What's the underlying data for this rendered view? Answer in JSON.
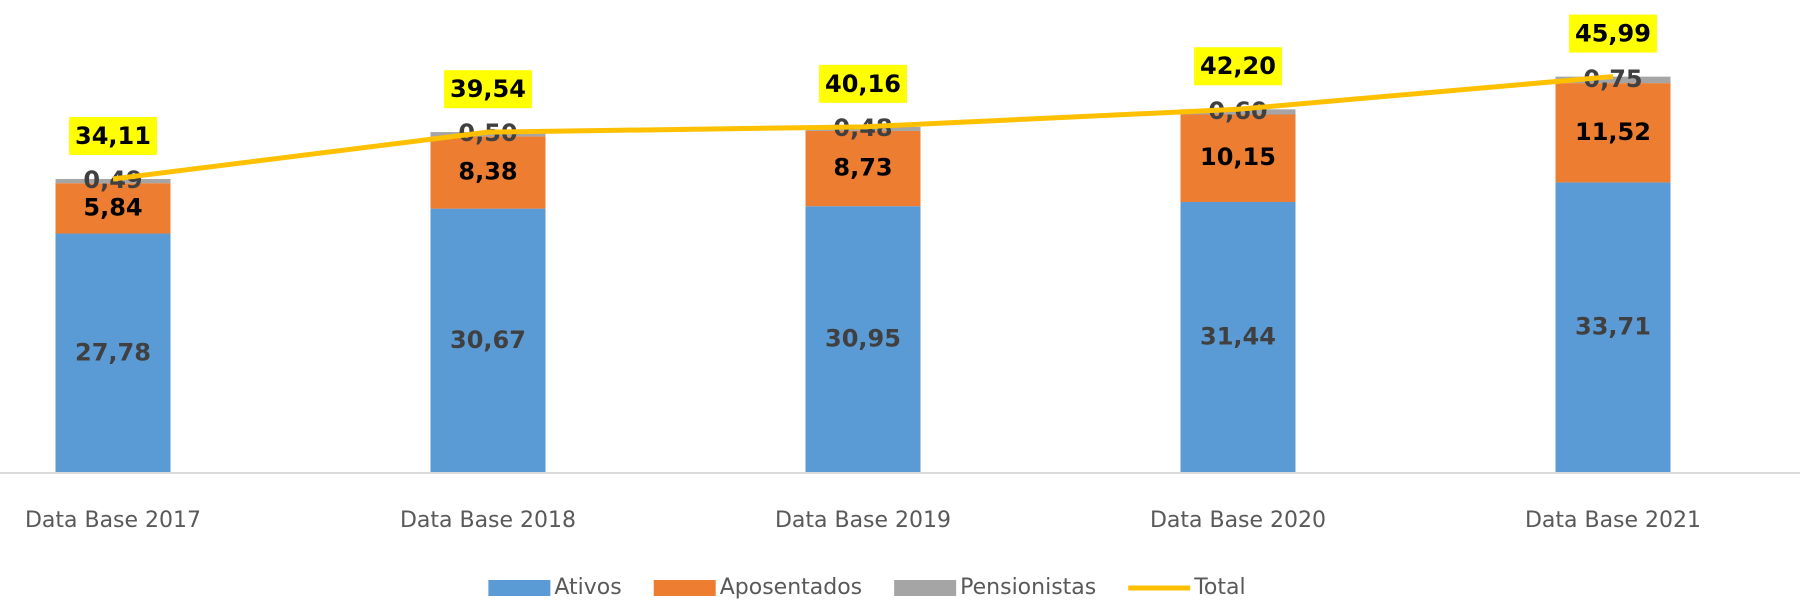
{
  "chart_data": {
    "type": "bar",
    "stacked": true,
    "categories": [
      "Data Base 2017",
      "Data Base 2018",
      "Data Base 2019",
      "Data Base 2020",
      "Data Base 2021"
    ],
    "ylim": [
      0,
      50
    ],
    "series": [
      {
        "name": "Ativos",
        "color": "#5b9bd5",
        "values": [
          27.78,
          30.67,
          30.95,
          31.44,
          33.71
        ],
        "value_labels": [
          "27,78",
          "30,67",
          "30,95",
          "31,44",
          "33,71"
        ]
      },
      {
        "name": "Aposentados",
        "color": "#ed7d31",
        "values": [
          5.84,
          8.38,
          8.73,
          10.15,
          11.52
        ],
        "value_labels": [
          "5,84",
          "8,38",
          "8,73",
          "10,15",
          "11,52"
        ]
      },
      {
        "name": "Pensionistas",
        "color": "#a5a5a5",
        "values": [
          0.49,
          0.5,
          0.48,
          0.6,
          0.75
        ],
        "value_labels": [
          "0,49",
          "0,50",
          "0,48",
          "0,60",
          "0,75"
        ]
      },
      {
        "name": "Total",
        "type": "line",
        "color": "#ffc000",
        "values": [
          34.11,
          39.54,
          40.16,
          42.2,
          45.99
        ],
        "value_labels": [
          "34,11",
          "39,54",
          "40,16",
          "42,20",
          "45,99"
        ]
      }
    ]
  }
}
